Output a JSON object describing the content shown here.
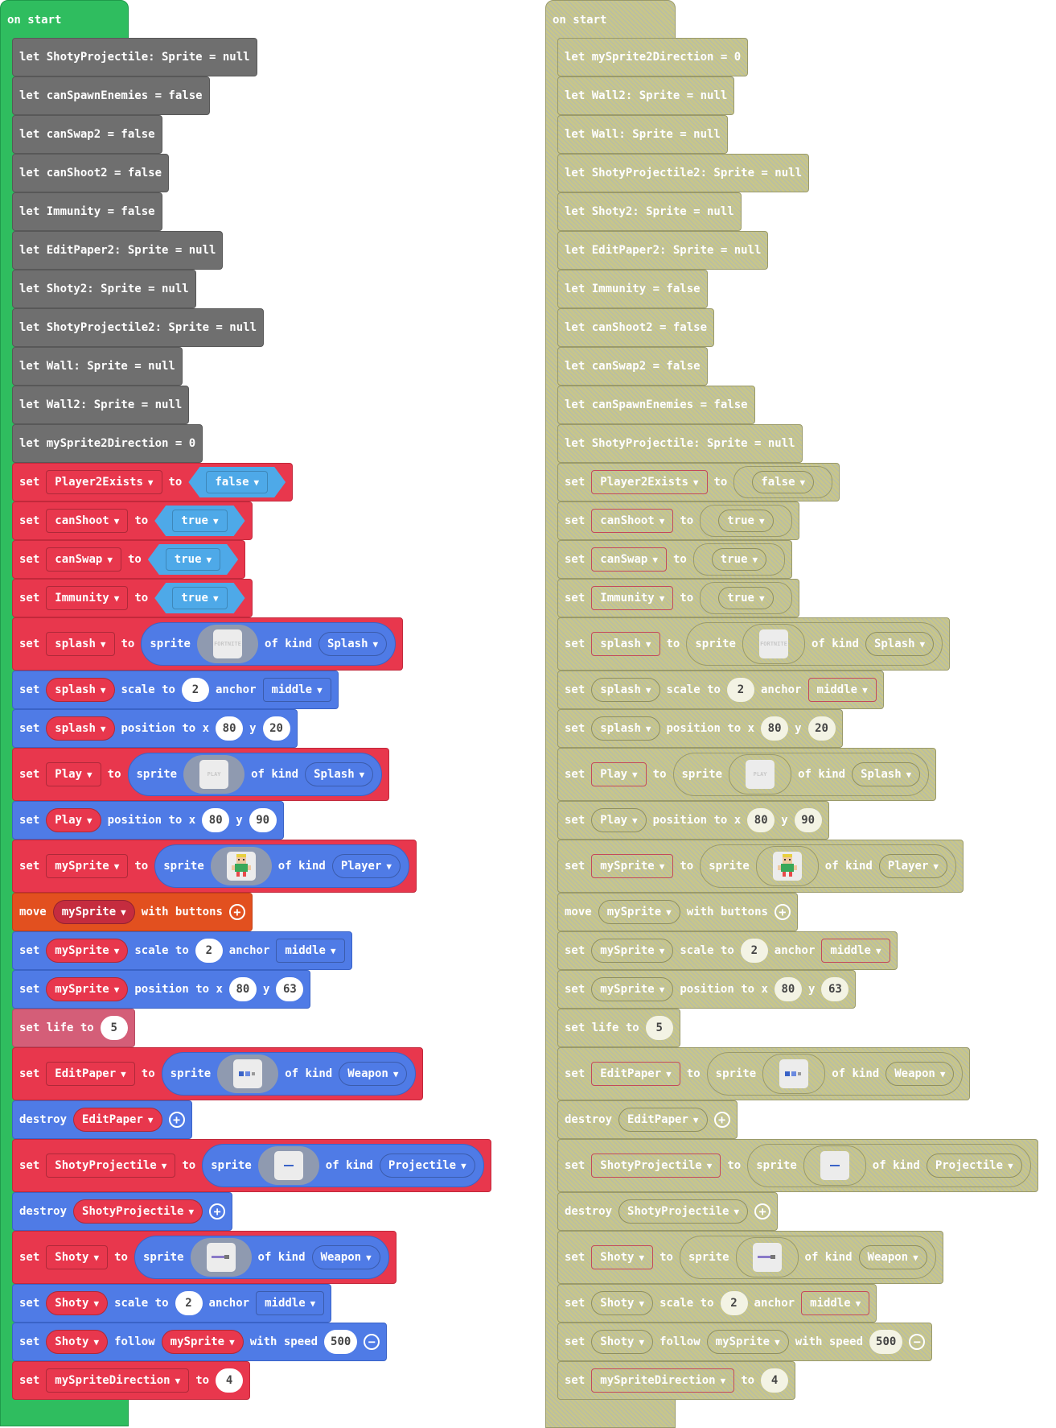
{
  "hat_label": "on start",
  "left_blocks": [
    {
      "kind": "let",
      "color": "gray",
      "text": "let ShotyProjectile: Sprite = null"
    },
    {
      "kind": "let",
      "color": "gray",
      "text": "let canSpawnEnemies = false"
    },
    {
      "kind": "let",
      "color": "gray",
      "text": "let canSwap2 = false"
    },
    {
      "kind": "let",
      "color": "gray",
      "text": "let canShoot2 = false"
    },
    {
      "kind": "let",
      "color": "gray",
      "text": "let Immunity = false"
    },
    {
      "kind": "let",
      "color": "gray",
      "text": "let EditPaper2: Sprite = null"
    },
    {
      "kind": "let",
      "color": "gray",
      "text": "let Shoty2: Sprite = null"
    },
    {
      "kind": "let",
      "color": "gray",
      "text": "let ShotyProjectile2: Sprite = null"
    },
    {
      "kind": "let",
      "color": "gray",
      "text": "let Wall: Sprite = null"
    },
    {
      "kind": "let",
      "color": "gray",
      "text": "let Wall2: Sprite = null"
    },
    {
      "kind": "let",
      "color": "gray",
      "text": "let mySprite2Direction = 0"
    },
    {
      "kind": "set_bool",
      "color": "red",
      "var": "Player2Exists",
      "value": "false"
    },
    {
      "kind": "set_bool",
      "color": "red",
      "var": "canShoot",
      "value": "true"
    },
    {
      "kind": "set_bool",
      "color": "red",
      "var": "canSwap",
      "value": "true"
    },
    {
      "kind": "set_bool",
      "color": "red",
      "var": "Immunity",
      "value": "true"
    },
    {
      "kind": "set_sprite",
      "color": "red",
      "var": "splash",
      "img": "splash",
      "img_text": "FORTNITE",
      "sprite_kind": "Splash"
    },
    {
      "kind": "scale",
      "color": "blue",
      "var": "splash",
      "scale": "2",
      "anchor": "middle"
    },
    {
      "kind": "position",
      "color": "blue",
      "var": "splash",
      "x": "80",
      "y": "20"
    },
    {
      "kind": "set_sprite",
      "color": "red",
      "var": "Play",
      "img": "play",
      "img_text": "PLAY",
      "sprite_kind": "Splash"
    },
    {
      "kind": "position",
      "color": "blue",
      "var": "Play",
      "x": "80",
      "y": "90"
    },
    {
      "kind": "set_sprite",
      "color": "red",
      "var": "mySprite",
      "img": "player",
      "img_text": "",
      "sprite_kind": "Player"
    },
    {
      "kind": "move",
      "color": "orange",
      "var": "mySprite"
    },
    {
      "kind": "scale",
      "color": "blue",
      "var": "mySprite",
      "scale": "2",
      "anchor": "middle"
    },
    {
      "kind": "position",
      "color": "blue",
      "var": "mySprite",
      "x": "80",
      "y": "63"
    },
    {
      "kind": "life",
      "color": "pink",
      "value": "5"
    },
    {
      "kind": "set_sprite",
      "color": "red",
      "var": "EditPaper",
      "img": "weapon_edit",
      "img_text": "",
      "sprite_kind": "Weapon"
    },
    {
      "kind": "destroy",
      "color": "blue",
      "var": "EditPaper"
    },
    {
      "kind": "set_sprite",
      "color": "red",
      "var": "ShotyProjectile",
      "img": "projectile",
      "img_text": "",
      "sprite_kind": "Projectile"
    },
    {
      "kind": "destroy",
      "color": "blue",
      "var": "ShotyProjectile"
    },
    {
      "kind": "set_sprite",
      "color": "red",
      "var": "Shoty",
      "img": "weapon_shoty",
      "img_text": "",
      "sprite_kind": "Weapon"
    },
    {
      "kind": "scale",
      "color": "blue",
      "var": "Shoty",
      "scale": "2",
      "anchor": "middle"
    },
    {
      "kind": "follow",
      "color": "blue",
      "var": "Shoty",
      "target": "mySprite",
      "speed": "500"
    },
    {
      "kind": "set_num",
      "color": "red",
      "var": "mySpriteDirection",
      "value": "4"
    }
  ],
  "right_blocks": [
    {
      "kind": "let",
      "color": "gray",
      "text": "let mySprite2Direction = 0"
    },
    {
      "kind": "let",
      "color": "gray",
      "text": "let Wall2: Sprite = null"
    },
    {
      "kind": "let",
      "color": "gray",
      "text": "let Wall: Sprite = null"
    },
    {
      "kind": "let",
      "color": "gray",
      "text": "let ShotyProjectile2: Sprite = null"
    },
    {
      "kind": "let",
      "color": "gray",
      "text": "let Shoty2: Sprite = null"
    },
    {
      "kind": "let",
      "color": "gray",
      "text": "let EditPaper2: Sprite = null"
    },
    {
      "kind": "let",
      "color": "gray",
      "text": "let Immunity = false"
    },
    {
      "kind": "let",
      "color": "gray",
      "text": "let canShoot2 = false"
    },
    {
      "kind": "let",
      "color": "gray",
      "text": "let canSwap2 = false"
    },
    {
      "kind": "let",
      "color": "gray",
      "text": "let canSpawnEnemies = false"
    },
    {
      "kind": "let",
      "color": "gray",
      "text": "let ShotyProjectile: Sprite = null"
    },
    {
      "kind": "set_bool",
      "color": "red",
      "var": "Player2Exists",
      "value": "false"
    },
    {
      "kind": "set_bool",
      "color": "red",
      "var": "canShoot",
      "value": "true"
    },
    {
      "kind": "set_bool",
      "color": "red",
      "var": "canSwap",
      "value": "true"
    },
    {
      "kind": "set_bool",
      "color": "red",
      "var": "Immunity",
      "value": "true"
    },
    {
      "kind": "set_sprite",
      "color": "red",
      "var": "splash",
      "img": "splash",
      "img_text": "FORTNITE",
      "sprite_kind": "Splash"
    },
    {
      "kind": "scale",
      "color": "blue",
      "var": "splash",
      "scale": "2",
      "anchor": "middle"
    },
    {
      "kind": "position",
      "color": "blue",
      "var": "splash",
      "x": "80",
      "y": "20"
    },
    {
      "kind": "set_sprite",
      "color": "red",
      "var": "Play",
      "img": "play",
      "img_text": "PLAY",
      "sprite_kind": "Splash"
    },
    {
      "kind": "position",
      "color": "blue",
      "var": "Play",
      "x": "80",
      "y": "90"
    },
    {
      "kind": "set_sprite",
      "color": "red",
      "var": "mySprite",
      "img": "player",
      "img_text": "",
      "sprite_kind": "Player"
    },
    {
      "kind": "move",
      "color": "orange",
      "var": "mySprite"
    },
    {
      "kind": "scale",
      "color": "blue",
      "var": "mySprite",
      "scale": "2",
      "anchor": "middle"
    },
    {
      "kind": "position",
      "color": "blue",
      "var": "mySprite",
      "x": "80",
      "y": "63"
    },
    {
      "kind": "life",
      "color": "pink",
      "value": "5"
    },
    {
      "kind": "set_sprite",
      "color": "red",
      "var": "EditPaper",
      "img": "weapon_edit",
      "img_text": "",
      "sprite_kind": "Weapon"
    },
    {
      "kind": "destroy",
      "color": "blue",
      "var": "EditPaper"
    },
    {
      "kind": "set_sprite",
      "color": "red",
      "var": "ShotyProjectile",
      "img": "projectile",
      "img_text": "",
      "sprite_kind": "Projectile"
    },
    {
      "kind": "destroy",
      "color": "blue",
      "var": "ShotyProjectile"
    },
    {
      "kind": "set_sprite",
      "color": "red",
      "var": "Shoty",
      "img": "weapon_shoty",
      "img_text": "",
      "sprite_kind": "Weapon"
    },
    {
      "kind": "scale",
      "color": "blue",
      "var": "Shoty",
      "scale": "2",
      "anchor": "middle"
    },
    {
      "kind": "follow",
      "color": "blue",
      "var": "Shoty",
      "target": "mySprite",
      "speed": "500"
    },
    {
      "kind": "set_num",
      "color": "red",
      "var": "mySpriteDirection",
      "value": "4"
    }
  ],
  "words": {
    "set": "set",
    "to": "to",
    "sprite": "sprite",
    "of_kind": "of kind",
    "scale_to": "scale to",
    "anchor": "anchor",
    "position_to_x": "position to x",
    "y": "y",
    "move": "move",
    "with_buttons": "with buttons",
    "set_life_to": "set life to",
    "destroy": "destroy",
    "follow": "follow",
    "with_speed": "with speed"
  },
  "icons": {
    "add": "plus-circle-icon",
    "remove": "minus-circle-icon",
    "dropdown": "caret-down-icon"
  }
}
